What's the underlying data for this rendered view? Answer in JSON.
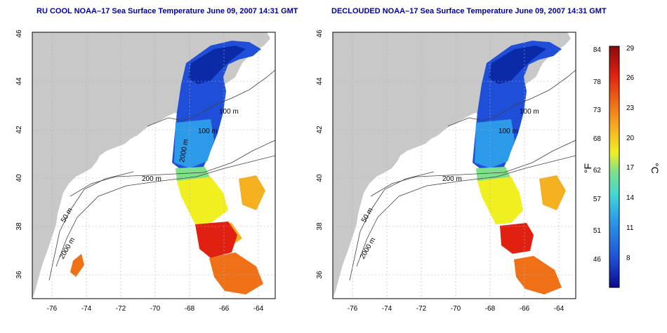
{
  "panels": [
    {
      "title": "RU COOL NOAA–17 Sea Surface Temperature June 09, 2007 14:31 GMT",
      "lon_ticks": [
        "-76",
        "-74",
        "-72",
        "-70",
        "-68",
        "-66",
        "-64"
      ],
      "lat_ticks": [
        "36",
        "38",
        "40",
        "42",
        "44",
        "46"
      ],
      "isobath_labels": [
        "100 m",
        "100 m",
        "200 m",
        "50 m",
        "2000 m",
        "2000 m"
      ]
    },
    {
      "title": "DECLOUDED NOAA–17 Sea Surface Temperature June 09, 2007 14:31 GMT",
      "lon_ticks": [
        "-76",
        "-74",
        "-72",
        "-70",
        "-68",
        "-66",
        "-64"
      ],
      "lat_ticks": [
        "36",
        "38",
        "40",
        "42",
        "44",
        "46"
      ],
      "isobath_labels": [
        "100 m",
        "100 m",
        "200 m",
        "50 m",
        "2000 m"
      ]
    }
  ],
  "colorbar": {
    "f_label": "°F",
    "c_label": "°C",
    "f_ticks": [
      "84",
      "78",
      "73",
      "68",
      "62",
      "57",
      "51",
      "46"
    ],
    "c_ticks": [
      "29",
      "26",
      "23",
      "20",
      "17",
      "14",
      "11",
      "8"
    ],
    "colors": [
      "#0a0a8c",
      "#1f4fd8",
      "#2c9ae8",
      "#3fd6d6",
      "#7fe08a",
      "#f0f020",
      "#f5b020",
      "#f07018",
      "#e02010",
      "#8a0a0a"
    ]
  },
  "colors": {
    "land": "#c8c8c8",
    "ocean": "#ffffff",
    "grid": "#b0b0b0",
    "contour": "#404040",
    "title": "#0000a0"
  }
}
